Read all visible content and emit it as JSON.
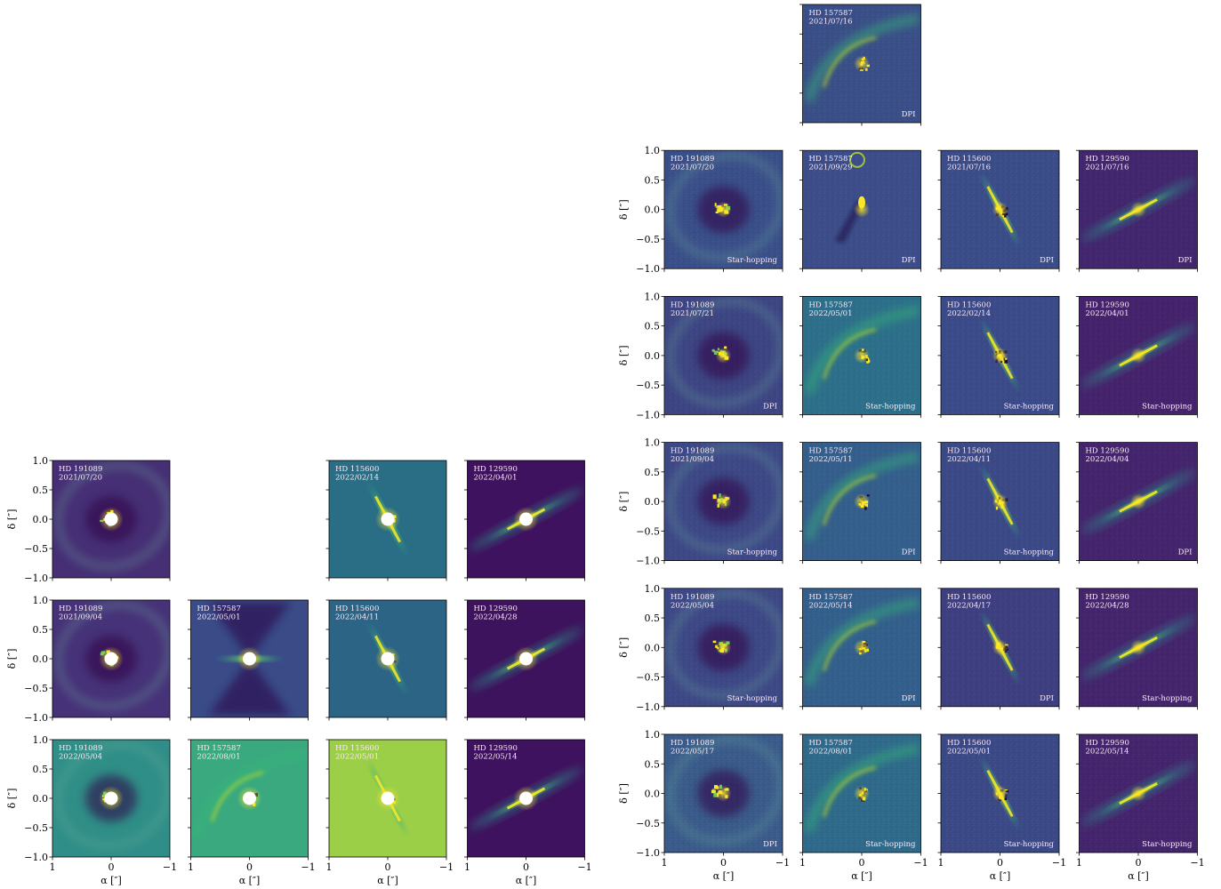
{
  "axes": {
    "xlabel": "α [″]",
    "ylabel": "δ [″]",
    "x_ticks": [
      "1",
      "0",
      "−1"
    ],
    "y_ticks": [
      "1.0",
      "0.5",
      "0.0",
      "−0.5",
      "−1.0"
    ],
    "x_values": [
      1,
      0,
      -1
    ],
    "y_values": [
      1.0,
      0.5,
      0.0,
      -0.5,
      -1.0
    ],
    "xlim": [
      1,
      -1
    ],
    "ylim": [
      -1,
      1
    ]
  },
  "colormap": [
    "#440154",
    "#3b528b",
    "#21918c",
    "#5ec962",
    "#fde725"
  ],
  "chart_data": [
    {
      "type": "heatmap",
      "group": "left",
      "panels": [
        {
          "row": 0,
          "col": 0,
          "star": "HD 191089",
          "date": "2021/07/20",
          "mode": "",
          "bg": "#462f75",
          "mask": true,
          "structure": "ring"
        },
        {
          "row": 0,
          "col": 2,
          "star": "HD 115600",
          "date": "2022/02/14",
          "mode": "",
          "bg": "#2a6e86",
          "mask": true,
          "structure": "vertical"
        },
        {
          "row": 0,
          "col": 3,
          "star": "HD 129590",
          "date": "2022/04/01",
          "mode": "",
          "bg": "#3e125e",
          "mask": true,
          "structure": "diagonal"
        },
        {
          "row": 1,
          "col": 0,
          "star": "HD 191089",
          "date": "2021/09/04",
          "mode": "",
          "bg": "#463278",
          "mask": true,
          "structure": "ring"
        },
        {
          "row": 1,
          "col": 1,
          "star": "HD 157587",
          "date": "2022/05/01",
          "mode": "",
          "bg": "#3a4b88",
          "mask": true,
          "structure": "bowtie"
        },
        {
          "row": 1,
          "col": 2,
          "star": "HD 115600",
          "date": "2022/04/11",
          "mode": "",
          "bg": "#2c6486",
          "mask": true,
          "structure": "vertical"
        },
        {
          "row": 1,
          "col": 3,
          "star": "HD 129590",
          "date": "2022/04/28",
          "mode": "",
          "bg": "#3d135d",
          "mask": true,
          "structure": "diagonal"
        },
        {
          "row": 2,
          "col": 0,
          "star": "HD 191089",
          "date": "2022/05/04",
          "mode": "",
          "bg": "#2f8e87",
          "mask": true,
          "structure": "ring"
        },
        {
          "row": 2,
          "col": 1,
          "star": "HD 157587",
          "date": "2022/08/01",
          "mode": "",
          "bg": "#3aa97f",
          "mask": true,
          "structure": "arc"
        },
        {
          "row": 2,
          "col": 2,
          "star": "HD 115600",
          "date": "2022/05/01",
          "mode": "",
          "bg": "#9ccf48",
          "mask": true,
          "structure": "vertical"
        },
        {
          "row": 2,
          "col": 3,
          "star": "HD 129590",
          "date": "2022/05/14",
          "mode": "",
          "bg": "#3e125e",
          "mask": true,
          "structure": "diagonal"
        }
      ]
    },
    {
      "type": "heatmap",
      "group": "right",
      "panels": [
        {
          "row": 0,
          "col": 1,
          "star": "HD 157587",
          "date": "2021/07/16",
          "mode": "DPI",
          "bg": "#3a4f87",
          "mask": false,
          "structure": "arc"
        },
        {
          "row": 1,
          "col": 0,
          "star": "HD 191089",
          "date": "2021/07/20",
          "mode": "Star-hopping",
          "bg": "#3a4f89",
          "mask": false,
          "structure": "ring"
        },
        {
          "row": 1,
          "col": 1,
          "star": "HD 157587",
          "date": "2021/09/29",
          "mode": "DPI",
          "bg": "#3c4d89",
          "mask": false,
          "structure": "blob"
        },
        {
          "row": 1,
          "col": 2,
          "star": "HD 115600",
          "date": "2021/07/16",
          "mode": "DPI",
          "bg": "#3b4d89",
          "mask": false,
          "structure": "vertical"
        },
        {
          "row": 1,
          "col": 3,
          "star": "HD 129590",
          "date": "2021/07/16",
          "mode": "DPI",
          "bg": "#42266e",
          "mask": false,
          "structure": "diagonal"
        },
        {
          "row": 2,
          "col": 0,
          "star": "HD 191089",
          "date": "2021/07/21",
          "mode": "DPI",
          "bg": "#3d4583",
          "mask": false,
          "structure": "ring"
        },
        {
          "row": 2,
          "col": 1,
          "star": "HD 157587",
          "date": "2022/05/01",
          "mode": "Star-hopping",
          "bg": "#2d6f8a",
          "mask": false,
          "structure": "arc"
        },
        {
          "row": 2,
          "col": 2,
          "star": "HD 115600",
          "date": "2022/02/14",
          "mode": "Star-hopping",
          "bg": "#3b4a88",
          "mask": false,
          "structure": "vertical"
        },
        {
          "row": 2,
          "col": 3,
          "star": "HD 129590",
          "date": "2022/04/01",
          "mode": "Star-hopping",
          "bg": "#45236c",
          "mask": false,
          "structure": "diagonal"
        },
        {
          "row": 3,
          "col": 0,
          "star": "HD 191089",
          "date": "2021/09/04",
          "mode": "Star-hopping",
          "bg": "#3d4886",
          "mask": false,
          "structure": "ring"
        },
        {
          "row": 3,
          "col": 1,
          "star": "HD 157587",
          "date": "2022/05/11",
          "mode": "DPI",
          "bg": "#345e8c",
          "mask": false,
          "structure": "arc"
        },
        {
          "row": 3,
          "col": 2,
          "star": "HD 115600",
          "date": "2022/04/11",
          "mode": "Star-hopping",
          "bg": "#3b4987",
          "mask": false,
          "structure": "vertical"
        },
        {
          "row": 3,
          "col": 3,
          "star": "HD 129590",
          "date": "2022/04/04",
          "mode": "DPI",
          "bg": "#44256d",
          "mask": false,
          "structure": "diagonal"
        },
        {
          "row": 4,
          "col": 0,
          "star": "HD 191089",
          "date": "2022/05/04",
          "mode": "Star-hopping",
          "bg": "#3d4886",
          "mask": false,
          "structure": "ring"
        },
        {
          "row": 4,
          "col": 1,
          "star": "HD 157587",
          "date": "2022/05/14",
          "mode": "DPI",
          "bg": "#335f8c",
          "mask": false,
          "structure": "arc"
        },
        {
          "row": 4,
          "col": 2,
          "star": "HD 115600",
          "date": "2022/04/17",
          "mode": "DPI",
          "bg": "#3d3f80",
          "mask": false,
          "structure": "vertical"
        },
        {
          "row": 4,
          "col": 3,
          "star": "HD 129590",
          "date": "2022/04/28",
          "mode": "Star-hopping",
          "bg": "#44256d",
          "mask": false,
          "structure": "diagonal"
        },
        {
          "row": 5,
          "col": 0,
          "star": "HD 191089",
          "date": "2022/05/17",
          "mode": "DPI",
          "bg": "#3a5b8b",
          "mask": false,
          "structure": "ring"
        },
        {
          "row": 5,
          "col": 1,
          "star": "HD 157587",
          "date": "2022/08/01",
          "mode": "Star-hopping",
          "bg": "#2f6a8b",
          "mask": false,
          "structure": "arc"
        },
        {
          "row": 5,
          "col": 2,
          "star": "HD 115600",
          "date": "2022/05/01",
          "mode": "Star-hopping",
          "bg": "#3b4987",
          "mask": false,
          "structure": "vertical"
        },
        {
          "row": 5,
          "col": 3,
          "star": "HD 129590",
          "date": "2022/05/14",
          "mode": "Star-hopping",
          "bg": "#44256d",
          "mask": false,
          "structure": "diagonal"
        }
      ]
    }
  ]
}
